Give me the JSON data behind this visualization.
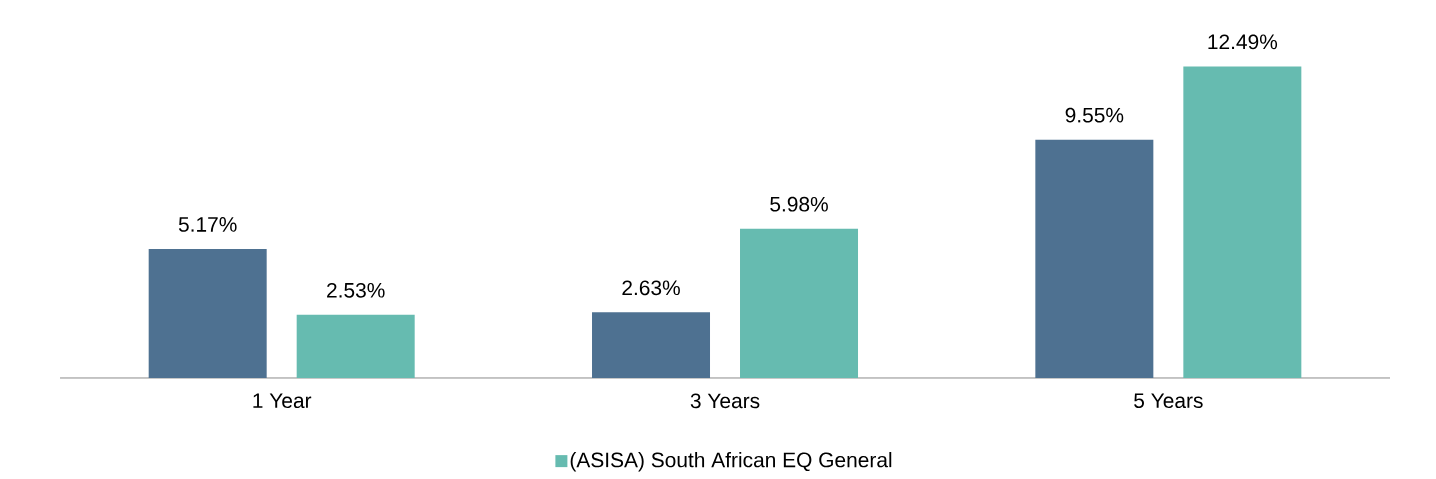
{
  "chart_data": {
    "type": "bar",
    "categories": [
      "1 Year",
      "3 Years",
      "5 Years"
    ],
    "series": [
      {
        "color": "#4e7191",
        "values": [
          5.17,
          2.63,
          9.55
        ],
        "value_labels": [
          "5.17%",
          "2.63%",
          "9.55%"
        ]
      },
      {
        "name": "(ASISA) South African EQ General",
        "color": "#66bbb0",
        "values": [
          2.53,
          5.98,
          12.49
        ],
        "value_labels": [
          "2.53%",
          "5.98%",
          "12.49%"
        ]
      }
    ],
    "tick_labels": "x",
    "legend": "bottom"
  }
}
